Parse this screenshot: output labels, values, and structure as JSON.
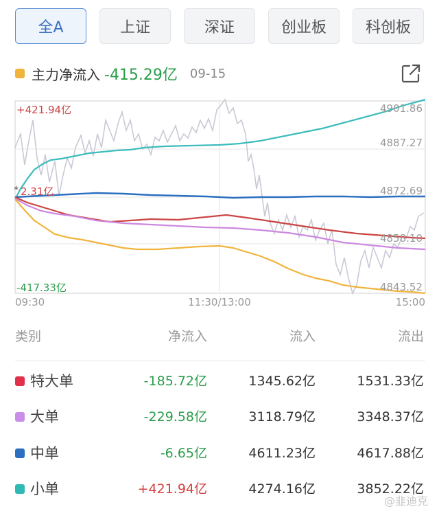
{
  "tabs": [
    {
      "label": "全A",
      "active": true
    },
    {
      "label": "上证",
      "active": false
    },
    {
      "label": "深证",
      "active": false
    },
    {
      "label": "创业板",
      "active": false
    },
    {
      "label": "科创板",
      "active": false
    }
  ],
  "flow": {
    "label": "主力净流入",
    "value": "-415.29亿",
    "date": "09-15"
  },
  "chart_data": {
    "type": "line",
    "left_axis": {
      "top": "+421.94亿",
      "mid": "2.31亿",
      "bottom": "-417.33亿",
      "range": [
        -417.33,
        421.94
      ]
    },
    "right_axis": {
      "ticks": [
        "4901.86",
        "4887.27",
        "4872.69",
        "4858.10",
        "4843.52"
      ],
      "range": [
        4843.52,
        4901.86
      ]
    },
    "x_labels": [
      "09:30",
      "11:30/13:00",
      "15:00"
    ],
    "colors": {
      "small": "#3cbcbc",
      "medium": "#2a6fc0",
      "large": "#cc4444",
      "xlarge": "#cc88e0",
      "main": "#f0b43c",
      "index": "#c7c7d4"
    }
  },
  "table": {
    "headers": {
      "type": "类别",
      "net": "净流入",
      "in": "流入",
      "out": "流出"
    },
    "rows": [
      {
        "name": "特大单",
        "color": "#e0304a",
        "net": "-185.72亿",
        "in": "1345.62亿",
        "out": "1531.33亿",
        "sign": "neg"
      },
      {
        "name": "大单",
        "color": "#c98ee8",
        "net": "-229.58亿",
        "in": "3118.79亿",
        "out": "3348.37亿",
        "sign": "neg"
      },
      {
        "name": "中单",
        "color": "#2a6fc0",
        "net": "-6.65亿",
        "in": "4611.23亿",
        "out": "4617.88亿",
        "sign": "neg"
      },
      {
        "name": "小单",
        "color": "#2fb9b4",
        "net": "+421.94亿",
        "in": "4274.16亿",
        "out": "3852.22亿",
        "sign": "pos"
      }
    ]
  },
  "watermark": "@韭迪克"
}
